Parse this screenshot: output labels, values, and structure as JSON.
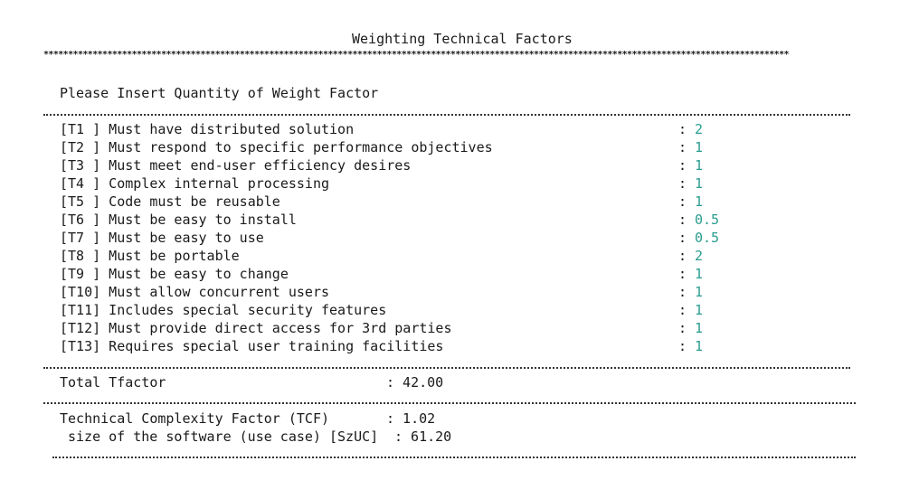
{
  "title": "Weighting Technical Factors",
  "stars": "********************************************************************************************************************************************************",
  "prompt": "Please Insert Quantity of Weight Factor",
  "factors": [
    {
      "code": "[T1 ]",
      "label": "Must have distributed solution",
      "value": "2"
    },
    {
      "code": "[T2 ]",
      "label": "Must respond to specific performance objectives",
      "value": "1"
    },
    {
      "code": "[T3 ]",
      "label": "Must meet end-user efficiency desires",
      "value": "1"
    },
    {
      "code": "[T4 ]",
      "label": "Complex internal processing",
      "value": "1"
    },
    {
      "code": "[T5 ]",
      "label": "Code must be reusable",
      "value": "1"
    },
    {
      "code": "[T6 ]",
      "label": "Must be easy to install",
      "value": "0.5"
    },
    {
      "code": "[T7 ]",
      "label": "Must be easy to use",
      "value": "0.5"
    },
    {
      "code": "[T8 ]",
      "label": "Must be portable",
      "value": "2"
    },
    {
      "code": "[T9 ]",
      "label": "Must be easy to change",
      "value": "1"
    },
    {
      "code": "[T10]",
      "label": "Must allow concurrent users",
      "value": "1"
    },
    {
      "code": "[T11]",
      "label": "Includes special security features",
      "value": "1"
    },
    {
      "code": "[T12]",
      "label": "Must provide direct access for 3rd parties",
      "value": "1"
    },
    {
      "code": "[T13]",
      "label": "Requires special user training facilities",
      "value": "1"
    }
  ],
  "colon": ":",
  "total": {
    "label": "Total Tfactor",
    "value": ": 42.00"
  },
  "tcf": {
    "label": "Technical Complexity Factor (TCF)",
    "value": ": 1.02"
  },
  "szuc": {
    "label": "size of the software (use case) [SzUC]",
    "value": ": 61.20"
  },
  "colors": {
    "value": "#2a9d8f",
    "text": "#1a1a1a"
  }
}
